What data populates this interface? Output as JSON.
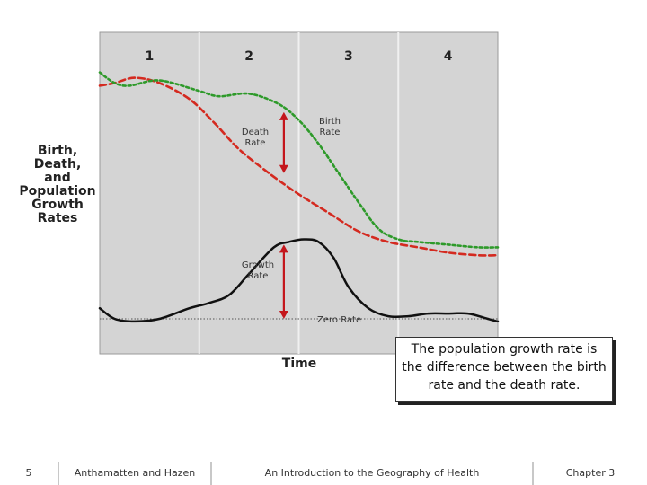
{
  "chart_data": {
    "type": "line",
    "title": "",
    "xlabel": "Time",
    "ylabel": [
      "Birth,",
      "Death,",
      "and",
      "Population",
      "Growth",
      "Rates"
    ],
    "stages": [
      "1",
      "2",
      "3",
      "4"
    ],
    "x_range": [
      0,
      4
    ],
    "y_range": [
      0,
      100
    ],
    "grid": false,
    "series": [
      {
        "name": "Birth Rate",
        "label": "Birth Rate",
        "color": "#2e9a2a",
        "style": "dashed",
        "x": [
          0,
          0.15,
          0.3,
          0.6,
          1.0,
          1.2,
          1.5,
          1.8,
          2.0,
          2.2,
          2.4,
          2.6,
          2.8,
          3.0,
          3.2,
          3.5,
          3.8,
          4.0
        ],
        "y": [
          93,
          89,
          88,
          90,
          86,
          84,
          85,
          81,
          75,
          66,
          55,
          44,
          34,
          30,
          29,
          28,
          27,
          27
        ]
      },
      {
        "name": "Death Rate",
        "label": "Death Rate",
        "color": "#d42a20",
        "style": "dashed",
        "x": [
          0,
          0.15,
          0.35,
          0.6,
          0.9,
          1.15,
          1.4,
          1.7,
          2.0,
          2.3,
          2.6,
          2.9,
          3.2,
          3.5,
          3.8,
          4.0
        ],
        "y": [
          88,
          89,
          91,
          89,
          83,
          74,
          64,
          55,
          47,
          40,
          33,
          29,
          27,
          25,
          24,
          24
        ]
      },
      {
        "name": "Growth Rate",
        "label": "Growth Rate",
        "color": "#111111",
        "style": "solid",
        "x": [
          0,
          0.15,
          0.35,
          0.6,
          0.9,
          1.1,
          1.3,
          1.5,
          1.75,
          1.9,
          2.05,
          2.2,
          2.35,
          2.5,
          2.7,
          2.9,
          3.1,
          3.3,
          3.5,
          3.7,
          3.9,
          4.0
        ],
        "y": [
          4,
          0,
          -1,
          0,
          4,
          6,
          9,
          17,
          27,
          29,
          30,
          29,
          23,
          12,
          4,
          1,
          1,
          2,
          2,
          2,
          0,
          -1
        ]
      }
    ],
    "reference_line": {
      "name": "Zero Rate",
      "y": 0
    },
    "annotations": {
      "gap_between_birth_and_death": {
        "x": 1.85,
        "y_from": 78,
        "y_to": 55
      },
      "growth_above_zero": {
        "x": 1.85,
        "y_from": 28,
        "y_to": 0
      }
    }
  },
  "callout": {
    "text": "The population growth rate is the difference between the birth rate and the death rate."
  },
  "footer": {
    "page_number": "5",
    "authors": "Anthamatten and Hazen",
    "book_title": "An Introduction to the Geography of Health",
    "chapter": "Chapter 3"
  },
  "colors": {
    "plot_background": "#d4d4d4",
    "birth": "#2e9a2a",
    "death": "#d42a20",
    "growth": "#111111",
    "arrow": "#c4161c",
    "stage_divider": "#f0f0f0"
  }
}
